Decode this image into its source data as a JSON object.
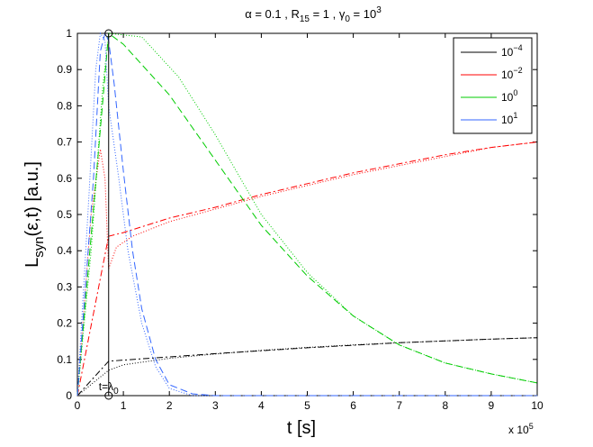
{
  "chart_data": {
    "type": "line",
    "title": {
      "pre": "α = 0.1 , R",
      "sub1": "15",
      "mid1": " = 1 , γ",
      "sub2": "0",
      "mid2": " = 10",
      "sup": "3"
    },
    "xlabel": "t [s]",
    "ylabel": {
      "main": "L",
      "sub": "syn",
      "rest": "(ε,t) [a.u.]"
    },
    "x_multiplier": {
      "base": "x 10",
      "exp": "5"
    },
    "xlim": [
      0,
      10
    ],
    "ylim": [
      0,
      1
    ],
    "xticks": [
      "0",
      "1",
      "2",
      "3",
      "4",
      "5",
      "6",
      "7",
      "8",
      "9",
      "10"
    ],
    "yticks": [
      "0",
      "0.1",
      "0.2",
      "0.3",
      "0.4",
      "0.5",
      "0.6",
      "0.7",
      "0.8",
      "0.9",
      "1"
    ],
    "legend_position": "top-right",
    "legend": [
      {
        "base": "10",
        "exp": "−4",
        "color": "#000000"
      },
      {
        "base": "10",
        "exp": "−2",
        "color": "#ff0000"
      },
      {
        "base": "10",
        "exp": "0",
        "color": "#00cc00"
      },
      {
        "base": "10",
        "exp": "1",
        "color": "#3366ff"
      }
    ],
    "annotation": {
      "text": "t=λ",
      "sub": "0",
      "x": 0.68
    },
    "series": [
      {
        "color": "#000000",
        "dash": "7,3,2,3",
        "points": [
          [
            0,
            0
          ],
          [
            0.68,
            0.095
          ],
          [
            1,
            0.098
          ],
          [
            2,
            0.107
          ],
          [
            3,
            0.116
          ],
          [
            4,
            0.124
          ],
          [
            5,
            0.132
          ],
          [
            6,
            0.139
          ],
          [
            7,
            0.146
          ],
          [
            8,
            0.151
          ],
          [
            9,
            0.156
          ],
          [
            10,
            0.16
          ]
        ]
      },
      {
        "color": "#000000",
        "dash": "1,2",
        "points": [
          [
            0,
            0
          ],
          [
            0.68,
            0.07
          ],
          [
            1,
            0.085
          ],
          [
            2,
            0.103
          ],
          [
            3,
            0.115
          ],
          [
            4,
            0.125
          ],
          [
            5,
            0.133
          ],
          [
            6,
            0.14
          ],
          [
            7,
            0.146
          ],
          [
            8,
            0.151
          ],
          [
            9,
            0.156
          ],
          [
            10,
            0.16
          ]
        ]
      },
      {
        "color": "#ff0000",
        "dash": "7,3,2,3",
        "points": [
          [
            0,
            0
          ],
          [
            0.68,
            0.44
          ],
          [
            1,
            0.45
          ],
          [
            2,
            0.49
          ],
          [
            3,
            0.52
          ],
          [
            4,
            0.555
          ],
          [
            5,
            0.585
          ],
          [
            6,
            0.615
          ],
          [
            7,
            0.64
          ],
          [
            8,
            0.665
          ],
          [
            9,
            0.685
          ],
          [
            10,
            0.7
          ]
        ]
      },
      {
        "color": "#ff0000",
        "dash": "1,2",
        "points": [
          [
            0,
            0
          ],
          [
            0.3,
            0.5
          ],
          [
            0.5,
            0.68
          ],
          [
            0.6,
            0.6
          ],
          [
            0.68,
            0.35
          ],
          [
            0.85,
            0.41
          ],
          [
            1.2,
            0.44
          ],
          [
            2,
            0.48
          ],
          [
            3,
            0.515
          ],
          [
            4,
            0.55
          ],
          [
            5,
            0.58
          ],
          [
            6,
            0.61
          ],
          [
            7,
            0.635
          ],
          [
            8,
            0.66
          ],
          [
            9,
            0.685
          ],
          [
            10,
            0.7
          ]
        ]
      },
      {
        "color": "#00cc00",
        "dash": "8,4",
        "points": [
          [
            0,
            0
          ],
          [
            0.68,
            1.0
          ],
          [
            1,
            0.97
          ],
          [
            2,
            0.83
          ],
          [
            3,
            0.65
          ],
          [
            4,
            0.47
          ],
          [
            5,
            0.33
          ],
          [
            6,
            0.22
          ],
          [
            7,
            0.14
          ],
          [
            8,
            0.09
          ],
          [
            9,
            0.06
          ],
          [
            10,
            0.035
          ]
        ]
      },
      {
        "color": "#00cc00",
        "dash": "1,2",
        "points": [
          [
            0,
            0
          ],
          [
            0.3,
            0.4
          ],
          [
            0.55,
            0.85
          ],
          [
            0.68,
            1.0
          ],
          [
            1.4,
            0.99
          ],
          [
            2.2,
            0.88
          ],
          [
            3,
            0.72
          ],
          [
            4,
            0.5
          ],
          [
            5,
            0.34
          ],
          [
            6,
            0.22
          ],
          [
            7,
            0.14
          ],
          [
            8,
            0.09
          ],
          [
            9,
            0.06
          ],
          [
            10,
            0.035
          ]
        ]
      },
      {
        "color": "#3366ff",
        "dash": "8,4",
        "points": [
          [
            0,
            0
          ],
          [
            0.35,
            0.6
          ],
          [
            0.5,
            0.95
          ],
          [
            0.6,
            1.0
          ],
          [
            0.68,
            0.98
          ],
          [
            0.8,
            0.86
          ],
          [
            1.0,
            0.62
          ],
          [
            1.2,
            0.4
          ],
          [
            1.4,
            0.24
          ],
          [
            1.7,
            0.1
          ],
          [
            2,
            0.03
          ],
          [
            2.5,
            0.005
          ],
          [
            3,
            0
          ],
          [
            10,
            0
          ]
        ]
      },
      {
        "color": "#3366ff",
        "dash": "1,2",
        "points": [
          [
            0,
            0
          ],
          [
            0.25,
            0.55
          ],
          [
            0.4,
            0.9
          ],
          [
            0.5,
            1.0
          ],
          [
            0.6,
            0.98
          ],
          [
            0.68,
            0.8
          ],
          [
            0.9,
            0.6
          ],
          [
            1.1,
            0.4
          ],
          [
            1.4,
            0.2
          ],
          [
            1.7,
            0.08
          ],
          [
            2,
            0.02
          ],
          [
            2.5,
            0
          ],
          [
            10,
            0
          ]
        ]
      }
    ]
  }
}
